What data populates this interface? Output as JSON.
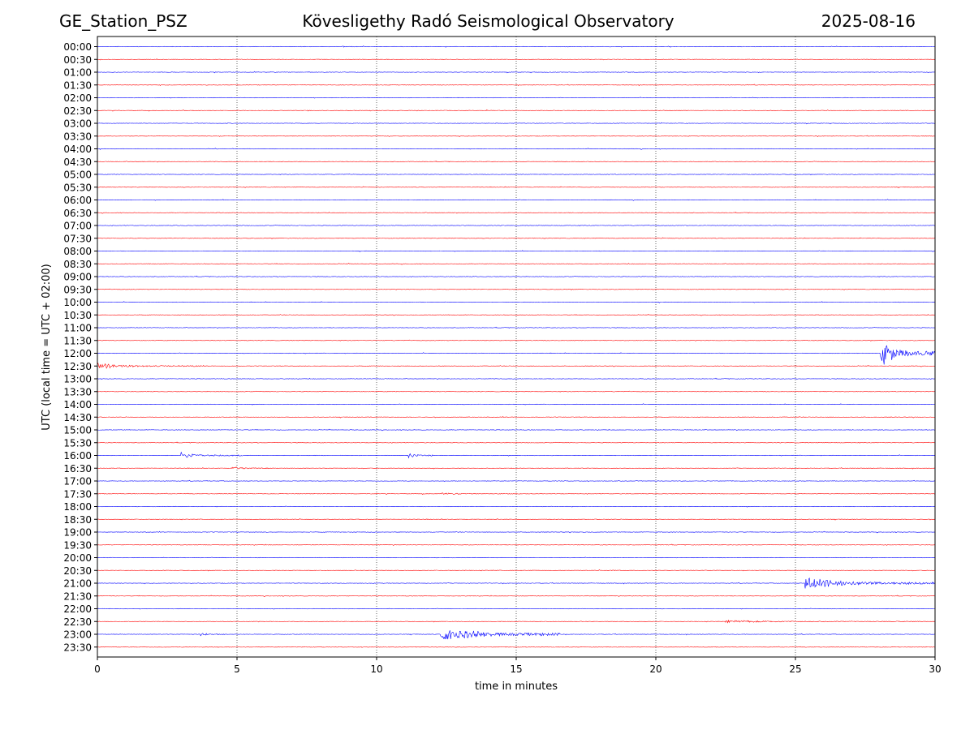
{
  "header": {
    "station": "GE_Station_PSZ",
    "observatory": "Kövesligethy Radó Seismological Observatory",
    "date": "2025-08-16"
  },
  "chart_data": {
    "type": "line",
    "title": "Kövesligethy Radó Seismological Observatory",
    "xlabel": "time in minutes",
    "ylabel": "UTC (local time = UTC + 02:00)",
    "xlim": [
      0,
      30
    ],
    "xticks": [
      0,
      5,
      10,
      15,
      20,
      25,
      30
    ],
    "vertical_gridlines_at": [
      5,
      10,
      15,
      20,
      25
    ],
    "grid": "dotted vertical lines",
    "rows": [
      "00:00",
      "00:30",
      "01:00",
      "01:30",
      "02:00",
      "02:30",
      "03:00",
      "03:30",
      "04:00",
      "04:30",
      "05:00",
      "05:30",
      "06:00",
      "06:30",
      "07:00",
      "07:30",
      "08:00",
      "08:30",
      "09:00",
      "09:30",
      "10:00",
      "10:30",
      "11:00",
      "11:30",
      "12:00",
      "12:30",
      "13:00",
      "13:30",
      "14:00",
      "14:30",
      "15:00",
      "15:30",
      "16:00",
      "16:30",
      "17:00",
      "17:30",
      "18:00",
      "18:30",
      "19:00",
      "19:30",
      "20:00",
      "20:30",
      "21:00",
      "21:30",
      "22:00",
      "22:30",
      "23:00",
      "23:30"
    ],
    "trace_colors": [
      "#0000ff",
      "#ff0000"
    ],
    "events": [
      {
        "row": "00:00",
        "start_min": 8.8,
        "end_min": 9.3,
        "amplitude": 0.15
      },
      {
        "row": "00:30",
        "start_min": 2.1,
        "end_min": 2.4,
        "amplitude": 0.12
      },
      {
        "row": "04:00",
        "start_min": 14.4,
        "end_min": 14.6,
        "amplitude": 0.12
      },
      {
        "row": "12:00",
        "start_min": 28.05,
        "end_min": 30.0,
        "amplitude": 2.4
      },
      {
        "row": "12:30",
        "start_min": 0.0,
        "end_min": 3.7,
        "amplitude": 0.45
      },
      {
        "row": "16:00",
        "start_min": 3.0,
        "end_min": 5.2,
        "amplitude": 0.55
      },
      {
        "row": "16:00",
        "start_min": 11.15,
        "end_min": 12.0,
        "amplitude": 0.45
      },
      {
        "row": "16:30",
        "start_min": 4.8,
        "end_min": 6.2,
        "amplitude": 0.28
      },
      {
        "row": "17:30",
        "start_min": 12.3,
        "end_min": 15.2,
        "amplitude": 0.12
      },
      {
        "row": "20:30",
        "start_min": 18.2,
        "end_min": 18.8,
        "amplitude": 0.08
      },
      {
        "row": "21:00",
        "start_min": 25.35,
        "end_min": 30.0,
        "amplitude": 1.15
      },
      {
        "row": "22:30",
        "start_min": 22.5,
        "end_min": 29.5,
        "amplitude": 0.18
      },
      {
        "row": "23:00",
        "start_min": 3.7,
        "end_min": 4.6,
        "amplitude": 0.3
      },
      {
        "row": "23:00",
        "start_min": 12.3,
        "end_min": 16.6,
        "amplitude": 1.35
      }
    ]
  }
}
